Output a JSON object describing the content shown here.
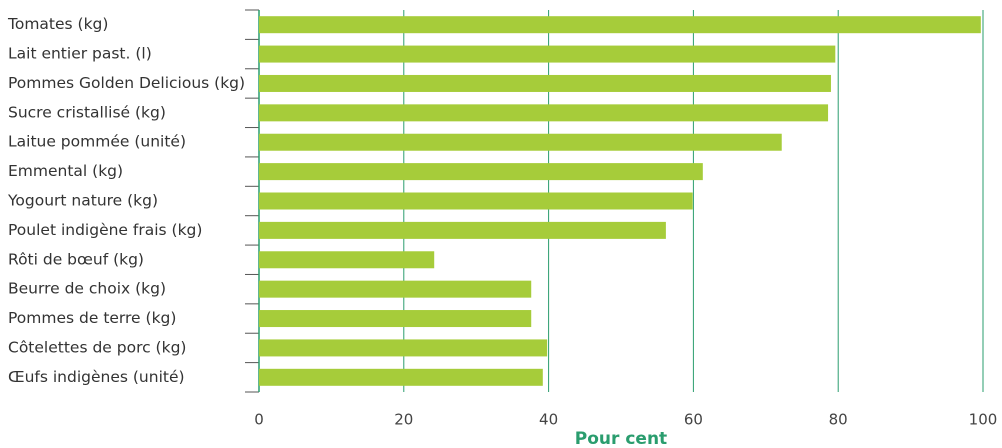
{
  "chart_data": {
    "type": "hbar",
    "categories": [
      "Tomates (kg)",
      "Lait entier past. (l)",
      "Pommes Golden Delicious (kg)",
      "Sucre cristallisé (kg)",
      "Laitue pommée (unité)",
      "Emmental (kg)",
      "Yogourt nature (kg)",
      "Poulet indigène frais (kg)",
      "Rôti de bœuf (kg)",
      "Beurre de choix (kg)",
      "Pommes de terre (kg)",
      "Côtelettes de porc (kg)",
      "Œufs indigènes (unité)"
    ],
    "values": [
      99.7,
      79.6,
      79.0,
      78.6,
      72.2,
      61.3,
      59.9,
      56.2,
      24.2,
      37.6,
      37.6,
      39.8,
      39.2
    ],
    "color": "#a6cc3a",
    "x_label": "Pour cent",
    "xlim": [
      0,
      100
    ],
    "xticks": [
      0,
      20,
      40,
      60,
      80,
      100
    ],
    "grid": true
  }
}
